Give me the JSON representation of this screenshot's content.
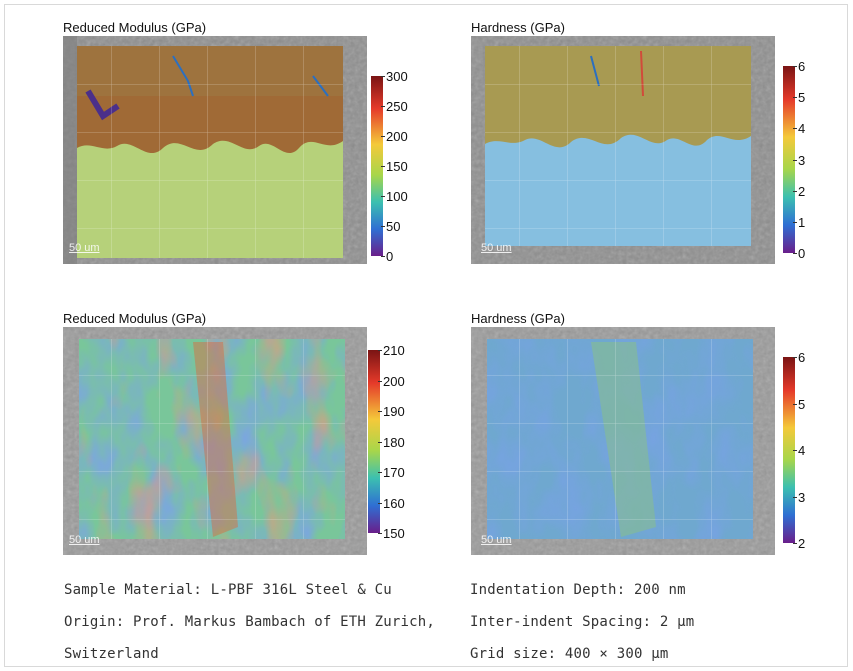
{
  "panels": [
    {
      "title": "Reduced Modulus (GPa)",
      "scalebar": "50 um",
      "colorbar_ticks": [
        "300",
        "250",
        "200",
        "150",
        "100",
        "50",
        "0"
      ]
    },
    {
      "title": "Hardness (GPa)",
      "scalebar": "50 um",
      "colorbar_ticks": [
        "6",
        "5",
        "4",
        "3",
        "2",
        "1",
        "0"
      ]
    },
    {
      "title": "Reduced Modulus (GPa)",
      "scalebar": "50 um",
      "colorbar_ticks": [
        "210",
        "200",
        "190",
        "180",
        "170",
        "160",
        "150"
      ]
    },
    {
      "title": "Hardness (GPa)",
      "scalebar": "50 um",
      "colorbar_ticks": [
        "6",
        "5",
        "4",
        "3",
        "2"
      ]
    }
  ],
  "caption": {
    "left": {
      "line1": "Sample Material: L-PBF 316L Steel & Cu",
      "line2": "Origin: Prof. Markus Bambach of ETH Zurich,",
      "line3": "Switzerland"
    },
    "right": {
      "line1": "Indentation Depth: 200 nm",
      "line2": "Inter-indent Spacing: 2 μm",
      "line3": "Grid size: 400 × 300 μm"
    }
  },
  "colors": {
    "grad_top": "#8b1a1a",
    "grad_mid_hi": "#e83a2c",
    "grad_mid": "#f2d43a",
    "grad_green": "#67c24a",
    "grad_blue": "#2c6fd1",
    "grad_bottom": "#6a1e8a"
  }
}
